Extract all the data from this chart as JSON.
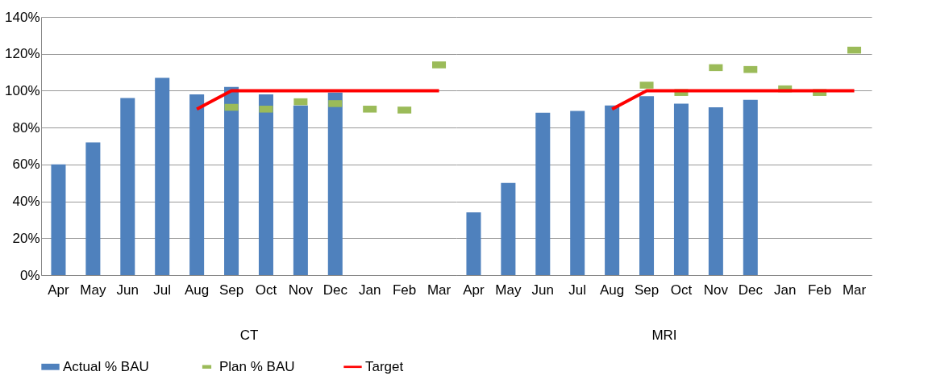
{
  "chart_data": [
    {
      "type": "bar",
      "xlabel": "CT",
      "categories": [
        "Apr",
        "May",
        "Jun",
        "Jul",
        "Aug",
        "Sep",
        "Oct",
        "Nov",
        "Dec",
        "Jan",
        "Feb",
        "Mar"
      ],
      "series": [
        {
          "name": "Actual % BAU",
          "type": "bar",
          "color": "#4f81bd",
          "values": [
            60,
            72,
            96,
            107,
            98,
            102,
            98,
            92,
            99,
            null,
            null,
            null
          ]
        },
        {
          "name": "Plan % BAU",
          "type": "scatter",
          "color": "#9bbb59",
          "x": [
            "Apr",
            "May",
            "Jun",
            "Jul",
            "Aug",
            "Sep",
            "Oct",
            "Nov",
            "Dec",
            "Jan",
            "Feb",
            "Mar"
          ],
          "values": [
            null,
            null,
            null,
            null,
            null,
            91,
            90,
            94,
            93,
            90,
            89.5,
            114
          ]
        },
        {
          "name": "Target",
          "type": "line",
          "color": "#ff0000",
          "values": [
            null,
            null,
            null,
            null,
            90,
            100,
            100,
            100,
            100,
            100,
            100,
            100
          ]
        }
      ],
      "ylim": [
        0,
        140
      ],
      "yticks": [
        {
          "value": 0,
          "label": "0%"
        },
        {
          "value": 20,
          "label": "20%"
        },
        {
          "value": 40,
          "label": "40%"
        },
        {
          "value": 60,
          "label": "60%"
        },
        {
          "value": 80,
          "label": "80%"
        },
        {
          "value": 100,
          "label": "100%"
        },
        {
          "value": 120,
          "label": "120%"
        },
        {
          "value": 140,
          "label": "140%"
        }
      ],
      "grid": "y",
      "legend": "bottom"
    },
    {
      "type": "bar",
      "xlabel": "MRI",
      "categories": [
        "Apr",
        "May",
        "Jun",
        "Jul",
        "Aug",
        "Sep",
        "Oct",
        "Nov",
        "Dec",
        "Jan",
        "Feb",
        "Mar"
      ],
      "series": [
        {
          "type": "bar",
          "color": "#4f81bd",
          "values": [
            34,
            50,
            88,
            89,
            92,
            97,
            93,
            91,
            95,
            null,
            null,
            null
          ]
        },
        {
          "type": "scatter",
          "color": "#9bbb59",
          "x": [
            "Apr",
            "May",
            "Jun",
            "Jul",
            "Aug",
            "Sep",
            "Oct",
            "Nov",
            "Dec",
            "Jan",
            "Feb",
            "Mar"
          ],
          "values": [
            null,
            null,
            null,
            null,
            null,
            103,
            99,
            112.5,
            111.5,
            101,
            99,
            122
          ]
        },
        {
          "type": "line",
          "color": "#ff0000",
          "values": [
            null,
            null,
            null,
            null,
            90,
            100,
            100,
            100,
            100,
            100,
            100,
            100
          ]
        }
      ],
      "ylim": [
        0,
        140
      ],
      "yticks": [
        0,
        20,
        40,
        60,
        80,
        100,
        120,
        140
      ],
      "grid": "y",
      "tick_labels": "x"
    }
  ]
}
